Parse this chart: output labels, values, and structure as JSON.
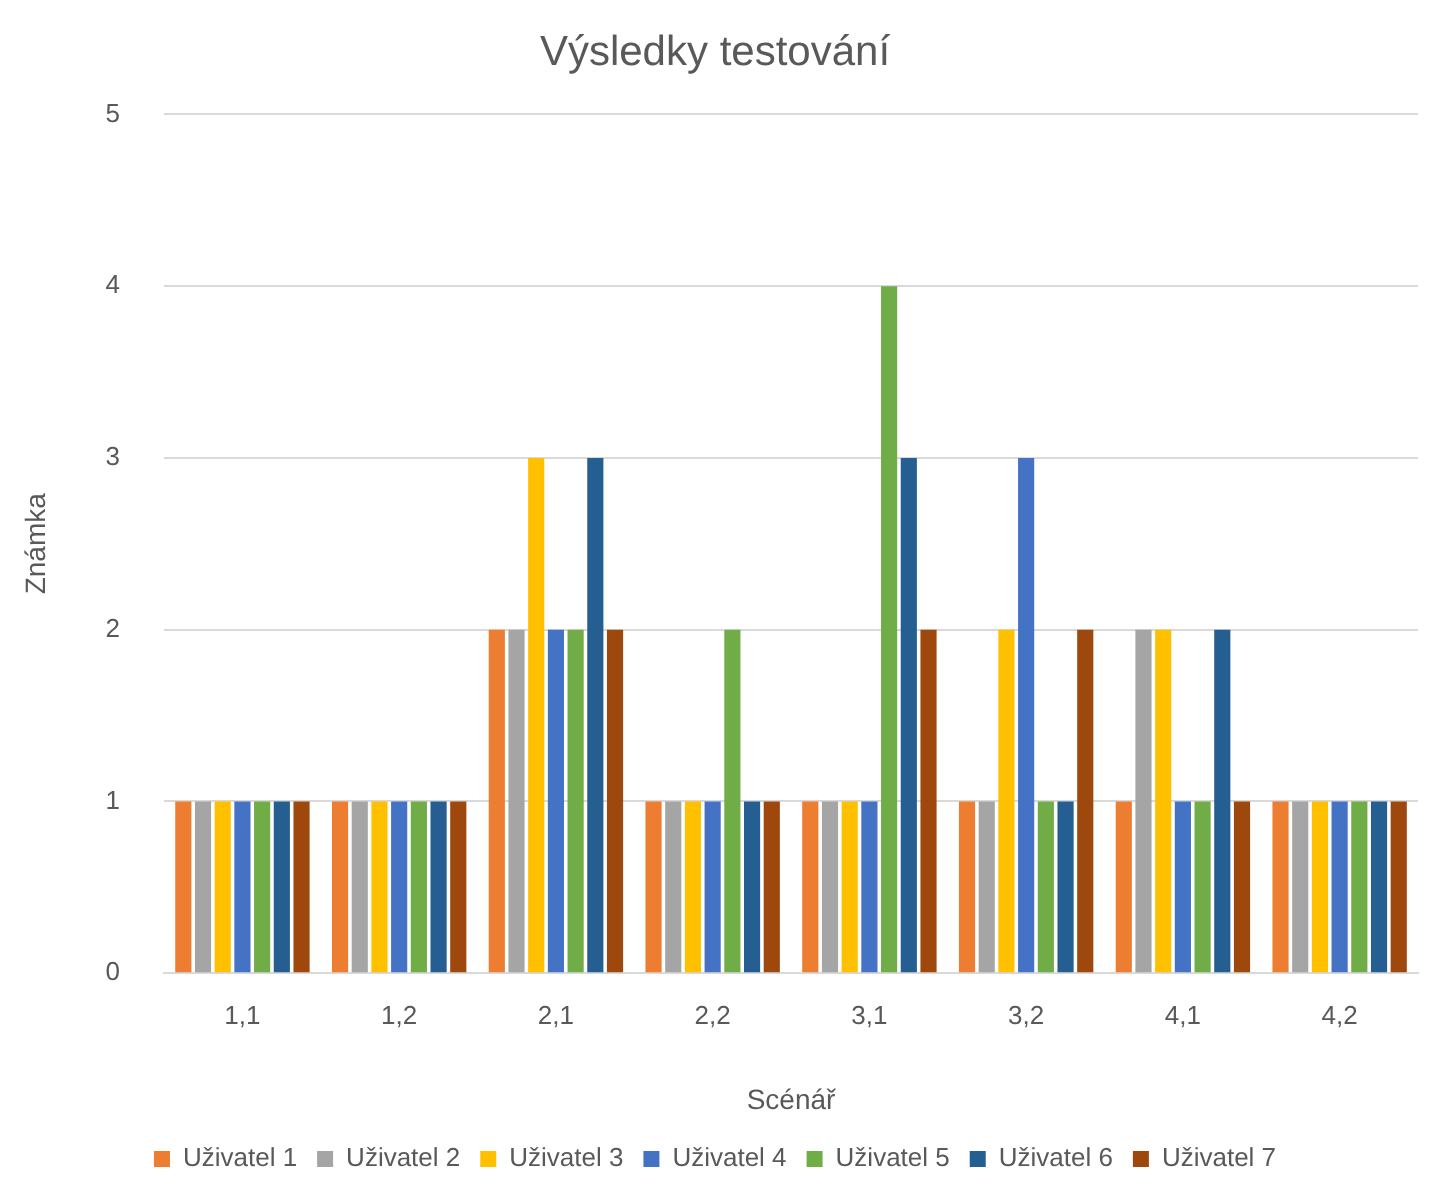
{
  "chart_data": {
    "type": "bar",
    "title": "Výsledky testování",
    "xlabel": "Scénář",
    "ylabel": "Známka",
    "categories": [
      "1,1",
      "1,2",
      "2,1",
      "2,2",
      "3,1",
      "3,2",
      "4,1",
      "4,2"
    ],
    "series": [
      {
        "name": "Uživatel 1",
        "color": "#ed7d31",
        "values": [
          1,
          1,
          2,
          1,
          1,
          1,
          1,
          1
        ]
      },
      {
        "name": "Uživatel 2",
        "color": "#a5a5a5",
        "values": [
          1,
          1,
          2,
          1,
          1,
          1,
          2,
          1
        ]
      },
      {
        "name": "Uživatel 3",
        "color": "#ffc000",
        "values": [
          1,
          1,
          3,
          1,
          1,
          2,
          2,
          1
        ]
      },
      {
        "name": "Uživatel 4",
        "color": "#4472c4",
        "values": [
          1,
          1,
          2,
          1,
          1,
          3,
          1,
          1
        ]
      },
      {
        "name": "Uživatel 5",
        "color": "#70ad47",
        "values": [
          1,
          1,
          2,
          2,
          4,
          1,
          1,
          1
        ]
      },
      {
        "name": "Uživatel 6",
        "color": "#255e91",
        "values": [
          1,
          1,
          3,
          1,
          3,
          1,
          2,
          1
        ]
      },
      {
        "name": "Uživatel 7",
        "color": "#9e480e",
        "values": [
          1,
          1,
          2,
          1,
          2,
          2,
          1,
          1
        ]
      }
    ],
    "ylim": [
      0,
      5
    ],
    "yticks": [
      0,
      1,
      2,
      3,
      4,
      5
    ],
    "grid": "y",
    "legend": "bottom"
  }
}
